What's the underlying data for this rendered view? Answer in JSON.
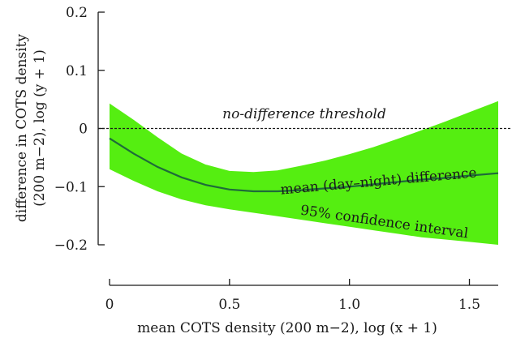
{
  "chart_data": {
    "type": "line",
    "xlabel": "mean COTS density (200 m−2), log (x + 1)",
    "ylabel_line1": "difference in COTS density",
    "ylabel_line2": "(200 m−2), log (y + 1)",
    "xlim": [
      0,
      1.62
    ],
    "ylim": [
      -0.2,
      0.2
    ],
    "x_ticks": [
      {
        "value": 0,
        "label": "0"
      },
      {
        "value": 0.5,
        "label": "0.5"
      },
      {
        "value": 1.0,
        "label": "1.0"
      },
      {
        "value": 1.5,
        "label": "1.5"
      }
    ],
    "y_ticks": [
      {
        "value": 0.2,
        "label": "0.2"
      },
      {
        "value": 0.1,
        "label": "0.1"
      },
      {
        "value": 0,
        "label": "0"
      },
      {
        "value": -0.1,
        "label": "−0.1"
      },
      {
        "value": -0.2,
        "label": "−0.2"
      }
    ],
    "threshold": {
      "value": 0,
      "label": "no-difference threshold",
      "style": "dashed"
    },
    "series": [
      {
        "name": "mean (day–night) difference",
        "x": [
          0,
          0.1,
          0.2,
          0.3,
          0.4,
          0.5,
          0.6,
          0.7,
          0.8,
          0.9,
          1.0,
          1.1,
          1.2,
          1.3,
          1.4,
          1.5,
          1.62
        ],
        "y": [
          -0.017,
          -0.043,
          -0.066,
          -0.084,
          -0.097,
          -0.105,
          -0.108,
          -0.108,
          -0.106,
          -0.103,
          -0.1,
          -0.096,
          -0.092,
          -0.088,
          -0.085,
          -0.081,
          -0.077
        ]
      }
    ],
    "confidence_band": {
      "name": "95% confidence interval",
      "x": [
        0,
        0.1,
        0.2,
        0.3,
        0.4,
        0.5,
        0.6,
        0.7,
        0.8,
        0.9,
        1.0,
        1.1,
        1.2,
        1.3,
        1.4,
        1.5,
        1.62
      ],
      "upper": [
        0.043,
        0.015,
        -0.015,
        -0.043,
        -0.062,
        -0.073,
        -0.075,
        -0.072,
        -0.064,
        -0.055,
        -0.044,
        -0.032,
        -0.018,
        -0.003,
        0.012,
        0.028,
        0.047
      ],
      "lower": [
        -0.07,
        -0.09,
        -0.108,
        -0.122,
        -0.132,
        -0.139,
        -0.145,
        -0.151,
        -0.157,
        -0.163,
        -0.169,
        -0.175,
        -0.181,
        -0.187,
        -0.191,
        -0.195,
        -0.2
      ]
    },
    "colors": {
      "band": "#55ee11",
      "line": "#1e6b3a",
      "threshold": "#1a1a1a",
      "axis": "#1a1a1a"
    },
    "grid": false
  }
}
